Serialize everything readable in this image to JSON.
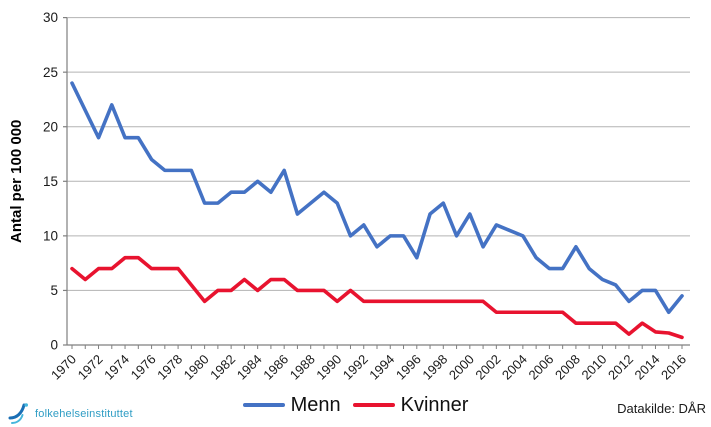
{
  "chart_data": {
    "type": "line",
    "title": "",
    "xlabel": "",
    "ylabel": "Antal per 100 000",
    "ylim": [
      0,
      30
    ],
    "y_ticks": [
      0,
      5,
      10,
      15,
      20,
      25,
      30
    ],
    "grid": true,
    "legend_position": "bottom",
    "x_label_every": 2,
    "years": [
      1970,
      1971,
      1972,
      1973,
      1974,
      1975,
      1976,
      1977,
      1978,
      1979,
      1980,
      1981,
      1982,
      1983,
      1984,
      1985,
      1986,
      1987,
      1988,
      1989,
      1990,
      1991,
      1992,
      1993,
      1994,
      1995,
      1996,
      1997,
      1998,
      1999,
      2000,
      2001,
      2002,
      2003,
      2004,
      2005,
      2006,
      2007,
      2008,
      2009,
      2010,
      2011,
      2012,
      2013,
      2014,
      2015,
      2016
    ],
    "series": [
      {
        "name": "Menn",
        "color": "#4472c4",
        "values": [
          24,
          21.5,
          19,
          22,
          19,
          19,
          17,
          16,
          16,
          16,
          13,
          13,
          14,
          14,
          15,
          14,
          16,
          12,
          13,
          14,
          13,
          10,
          11,
          9,
          10,
          10,
          8,
          12,
          13,
          10,
          12,
          9,
          11,
          10.5,
          10,
          8,
          7,
          7,
          9,
          7,
          6,
          5.5,
          4,
          5,
          5,
          3,
          4.5
        ]
      },
      {
        "name": "Kvinner",
        "color": "#e8132f",
        "values": [
          7,
          6,
          7,
          7,
          8,
          8,
          7,
          7,
          7,
          5.5,
          4,
          5,
          5,
          6,
          5,
          6,
          6,
          5,
          5,
          5,
          4,
          5,
          4,
          4,
          4,
          4,
          4,
          4,
          4,
          4,
          4,
          4,
          3,
          3,
          3,
          3,
          3,
          3,
          2,
          2,
          2,
          2,
          1,
          2,
          1.2,
          1.1,
          0.7
        ]
      }
    ],
    "grid_color": "#b3b3b3",
    "axis_color": "#7f7f7f",
    "tick_label_color": "#1a1a1a"
  },
  "footer": {
    "source_label": "Datakilde: DÅR",
    "logo_text": "folkehelseinstituttet"
  }
}
